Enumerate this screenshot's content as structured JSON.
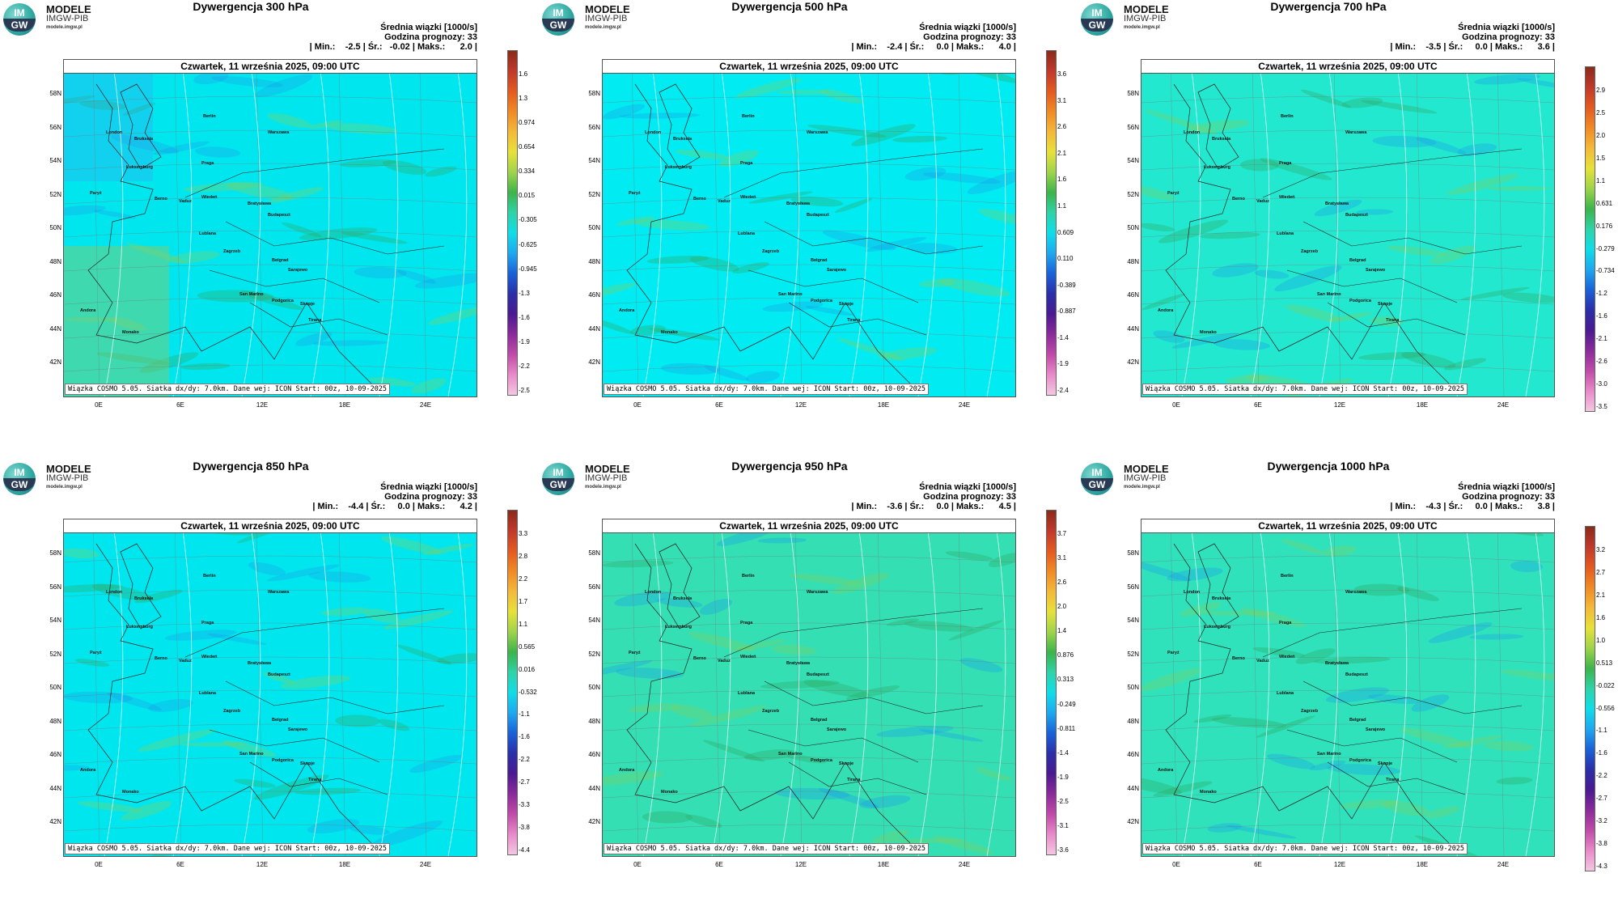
{
  "logo": {
    "title": "MODELE",
    "subtitle": "IMGW-PIB",
    "url": "modele.imgw.pl",
    "mark_top": "IM",
    "mark_bottom": "GW"
  },
  "common": {
    "date": "Czwartek, 11 września 2025, 09:00 UTC",
    "stats_title": "Średnia wiązki [1000/s]",
    "forecast_hour": "Godzina prognozy: 33",
    "footer": "Wiązka COSMO 5.05. Siatka dx/dy: 7.0km. Dane wej: ICON Start: 00z, 10-09-2025",
    "lat_labels": [
      "58N",
      "56N",
      "54N",
      "52N",
      "50N",
      "48N",
      "46N",
      "44N",
      "42N"
    ],
    "lon_labels": [
      "0E",
      "6E",
      "12E",
      "18E",
      "24E"
    ]
  },
  "cities": [
    "London",
    "Bruksela",
    "Luksemburg",
    "Paryż",
    "Berno",
    "Vaduz",
    "Wiedeń",
    "Praga",
    "Berlin",
    "Warszawa",
    "Budapeszt",
    "Bratysława",
    "Lublana",
    "Zagrzeb",
    "Belgrad",
    "Sarajewo",
    "San Marino",
    "Podgorica",
    "Skopje",
    "Andora",
    "Tirana",
    "Monako"
  ],
  "panels": [
    {
      "title": "Dywergencja 300 hPa",
      "stats": "| Min.:    -2.5 | Śr.:   -0.02 | Maks.:      2.0 |",
      "cbar": [
        "1.6",
        "1.3",
        "0.974",
        "0.654",
        "0.334",
        "0.015",
        "-0.305",
        "-0.625",
        "-0.945",
        "-1.3",
        "-1.6",
        "-1.9",
        "-2.2",
        "-2.5"
      ],
      "base": "#00e6ee"
    },
    {
      "title": "Dywergencja 500 hPa",
      "stats": "| Min.:    -2.4 | Śr.:     0.0 | Maks.:      4.0 |",
      "cbar": [
        "3.6",
        "3.1",
        "2.6",
        "2.1",
        "1.6",
        "1.1",
        "0.609",
        "0.110",
        "-0.389",
        "-0.887",
        "-1.4",
        "-1.9",
        "-2.4"
      ],
      "base": "#00ecf2"
    },
    {
      "title": "Dywergencja 700 hPa",
      "stats": "| Min.:    -3.5 | Śr.:     0.0 | Maks.:      3.6 |",
      "cbar": [
        "2.9",
        "2.5",
        "2.0",
        "1.5",
        "1.1",
        "0.631",
        "0.176",
        "-0.279",
        "-0.734",
        "-1.2",
        "-1.6",
        "-2.1",
        "-2.6",
        "-3.0",
        "-3.5"
      ],
      "base": "#22e8d0"
    },
    {
      "title": "Dywergencja 850 hPa",
      "stats": "| Min.:    -4.4 | Śr.:     0.0 | Maks.:      4.2 |",
      "cbar": [
        "3.3",
        "2.8",
        "2.2",
        "1.7",
        "1.1",
        "0.565",
        "0.016",
        "-0.532",
        "-1.1",
        "-1.6",
        "-2.2",
        "-2.7",
        "-3.3",
        "-3.8",
        "-4.4"
      ],
      "base": "#00e6ee"
    },
    {
      "title": "Dywergencja 950 hPa",
      "stats": "| Min.:    -3.6 | Śr.:     0.0 | Maks.:      4.5 |",
      "cbar": [
        "3.7",
        "3.1",
        "2.6",
        "2.0",
        "1.4",
        "0.876",
        "0.313",
        "-0.249",
        "-0.811",
        "-1.4",
        "-1.9",
        "-2.5",
        "-3.1",
        "-3.6"
      ],
      "base": "#34dfb4"
    },
    {
      "title": "Dywergencja 1000 hPa",
      "stats": "| Min.:    -4.3 | Śr.:     0.0 | Maks.:      3.8 |",
      "cbar": [
        "3.2",
        "2.7",
        "2.1",
        "1.6",
        "1.0",
        "0.513",
        "-0.022",
        "-0.556",
        "-1.1",
        "-1.6",
        "-2.2",
        "-2.7",
        "-3.2",
        "-3.8",
        "-4.3"
      ],
      "base": "#2fe2bc"
    }
  ]
}
